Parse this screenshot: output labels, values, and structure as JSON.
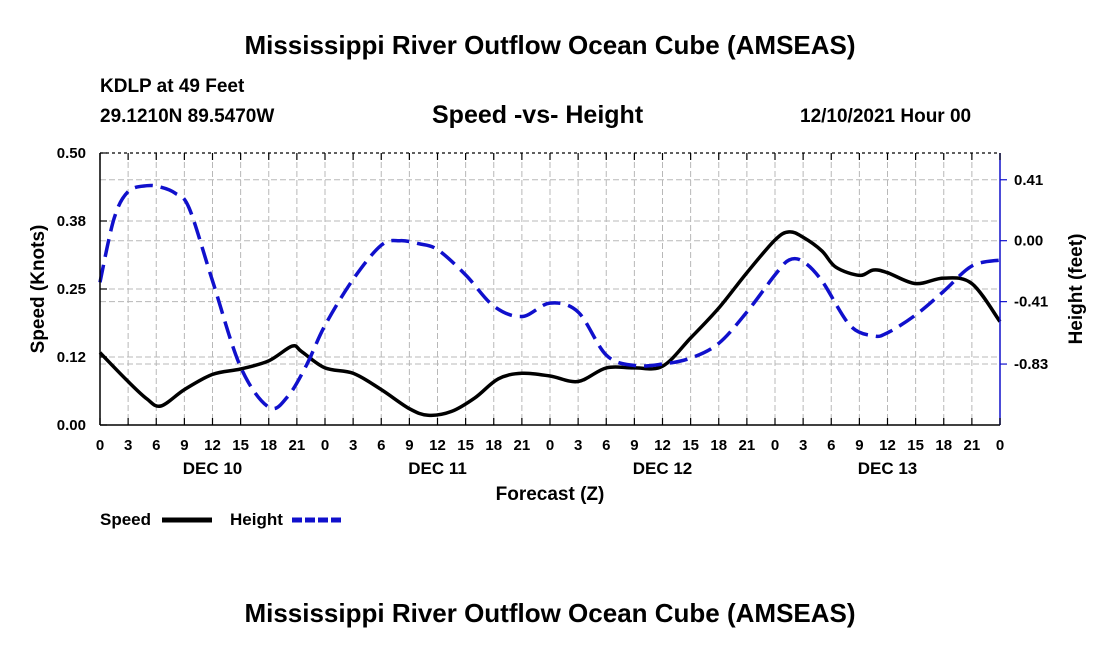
{
  "header": {
    "title": "Mississippi River Outflow Ocean Cube (AMSEAS)",
    "station": "KDLP at 49 Feet",
    "coords": "29.1210N  89.5470W",
    "subtitle": "Speed -vs- Height",
    "datetime": "12/10/2021 Hour 00"
  },
  "footer": {
    "title": "Mississippi River Outflow Ocean Cube (AMSEAS)"
  },
  "chart_data": {
    "type": "line",
    "title": "Speed -vs- Height",
    "xlabel": "Forecast (Z)",
    "ylabel": "Speed (Knots)",
    "y2label": "Height (feet)",
    "x_hours_range": [
      0,
      96
    ],
    "ylim": [
      0,
      0.5
    ],
    "y2lim": [
      -1.24,
      0.59
    ],
    "grid": true,
    "x_tick_labels": [
      "0",
      "3",
      "6",
      "9",
      "12",
      "15",
      "18",
      "21",
      "0",
      "3",
      "6",
      "9",
      "12",
      "15",
      "18",
      "21",
      "0",
      "3",
      "6",
      "9",
      "12",
      "15",
      "18",
      "21",
      "0",
      "3",
      "6",
      "9",
      "12",
      "15",
      "18",
      "21",
      "0"
    ],
    "day_labels": [
      "DEC 10",
      "DEC 11",
      "DEC 12",
      "DEC 13"
    ],
    "y_ticks": [
      "0.00",
      "0.12",
      "0.25",
      "0.38",
      "0.50"
    ],
    "y_tick_values": [
      0,
      0.125,
      0.25,
      0.375,
      0.5
    ],
    "y2_ticks": [
      "-0.83",
      "-0.41",
      "0.00",
      "0.41"
    ],
    "y2_tick_values": [
      -0.83,
      -0.41,
      0,
      0.41
    ],
    "legend": [
      {
        "name": "Speed",
        "color": "#000000",
        "style": "solid"
      },
      {
        "name": "Height",
        "color": "#1010cc",
        "style": "dashed"
      }
    ],
    "series": [
      {
        "name": "Speed",
        "axis": "left",
        "color": "#000000",
        "x": [
          0,
          3,
          5,
          6.5,
          9,
          12,
          15,
          18,
          20.5,
          21.5,
          24,
          27,
          30,
          33,
          35,
          37.5,
          40,
          42.5,
          45,
          48,
          51,
          54,
          57,
          60,
          63,
          66,
          69,
          72,
          73.5,
          75,
          77,
          78.5,
          81,
          82.5,
          84,
          87,
          90,
          93,
          96
        ],
        "values": [
          0.133,
          0.08,
          0.048,
          0.035,
          0.065,
          0.093,
          0.103,
          0.118,
          0.145,
          0.135,
          0.105,
          0.095,
          0.065,
          0.03,
          0.018,
          0.025,
          0.05,
          0.085,
          0.095,
          0.09,
          0.08,
          0.105,
          0.105,
          0.108,
          0.16,
          0.215,
          0.28,
          0.34,
          0.355,
          0.345,
          0.32,
          0.29,
          0.275,
          0.285,
          0.28,
          0.26,
          0.27,
          0.26,
          0.19
        ]
      },
      {
        "name": "Height",
        "axis": "right",
        "color": "#1010cc",
        "x": [
          0,
          1.5,
          3,
          5,
          6.5,
          8,
          9.5,
          12,
          15,
          18,
          20,
          22,
          24,
          27,
          30,
          32,
          34,
          36,
          39,
          42,
          45,
          48,
          51,
          54,
          57,
          60,
          63,
          66,
          69,
          72,
          73.5,
          75,
          77,
          80,
          82.5,
          84,
          87,
          90,
          93,
          96
        ],
        "values": [
          -0.28,
          0.15,
          0.33,
          0.37,
          0.36,
          0.32,
          0.22,
          -0.27,
          -0.85,
          -1.12,
          -1.05,
          -0.84,
          -0.57,
          -0.26,
          -0.03,
          0.0,
          -0.02,
          -0.06,
          -0.23,
          -0.44,
          -0.51,
          -0.42,
          -0.48,
          -0.77,
          -0.84,
          -0.83,
          -0.79,
          -0.69,
          -0.48,
          -0.23,
          -0.13,
          -0.14,
          -0.27,
          -0.57,
          -0.64,
          -0.62,
          -0.5,
          -0.34,
          -0.17,
          -0.13
        ]
      }
    ]
  }
}
